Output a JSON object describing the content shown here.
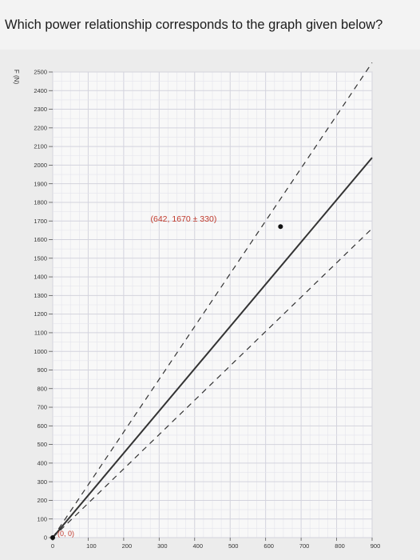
{
  "question": {
    "text": "Which power relationship corresponds to the graph given below?"
  },
  "chart_data": {
    "type": "line",
    "title": "",
    "xlabel": "",
    "ylabel": "F (N)",
    "xlim": [
      0,
      900
    ],
    "ylim": [
      0,
      2500
    ],
    "x_ticks": [
      0,
      100,
      200,
      300,
      400,
      500,
      600,
      700,
      800,
      900
    ],
    "y_ticks": [
      0,
      100,
      200,
      300,
      400,
      500,
      600,
      700,
      800,
      900,
      1000,
      1100,
      1200,
      1300,
      1400,
      1500,
      1600,
      1700,
      1800,
      1900,
      2000,
      2100,
      2200,
      2300,
      2400,
      2500
    ],
    "grid": true,
    "legend": "none",
    "series": [
      {
        "style": "solid",
        "color": "#333333",
        "x": [
          0,
          900
        ],
        "y": [
          0,
          2040
        ]
      },
      {
        "style": "dashed",
        "color": "#333333",
        "x": [
          0,
          900
        ],
        "y": [
          0,
          2550
        ]
      },
      {
        "style": "dashed",
        "color": "#333333",
        "x": [
          0,
          900
        ],
        "y": [
          0,
          1660
        ]
      }
    ],
    "points": [
      {
        "x": 0,
        "y": 0,
        "label": "(0, 0)",
        "label_color": "#c0392b"
      },
      {
        "x": 642,
        "y": 1670,
        "label": "(642, 1670 ± 330)",
        "label_color": "#c0392b"
      }
    ]
  }
}
